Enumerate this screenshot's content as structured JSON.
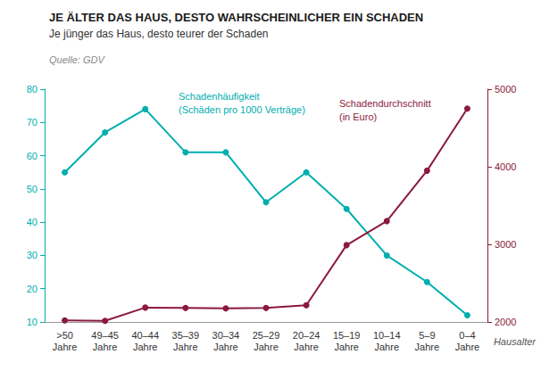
{
  "chart_data": {
    "type": "line",
    "title": "JE ÄLTER DAS HAUS, DESTO WAHRSCHEINLICHER EIN SCHADEN",
    "subtitle": "Je jünger das Haus, desto teurer der Schaden",
    "source": "Quelle: GDV",
    "xlabel": "Hausalter",
    "categories": [
      ">50\nJahre",
      "49–45\nJahre",
      "40–44\nJahre",
      "35–39\nJahre",
      "30–34\nJahre",
      "25–29\nJahre",
      "20–24\nJahre",
      "15–19\nJahre",
      "10–14\nJahre",
      "5–9\nJahre",
      "0–4\nJahre"
    ],
    "series": [
      {
        "name": "Schadenhäufigkeit\n(Schäden pro 1000 Verträge)",
        "color": "#00AEAE",
        "marker": "circle",
        "values": [
          55,
          67,
          74,
          61,
          61,
          46,
          55,
          44,
          30,
          22,
          12
        ]
      },
      {
        "name": "Schadendurchschnitt\n(in Euro)",
        "color": "#8B1A3C",
        "marker": "circle",
        "axis": "y2",
        "values": [
          2020,
          2015,
          2185,
          2180,
          2175,
          2180,
          2215,
          2990,
          3300,
          3950,
          4750
        ]
      }
    ],
    "ylim": [
      10,
      80
    ],
    "yticks": [
      10,
      20,
      30,
      40,
      50,
      60,
      70,
      80
    ],
    "y2lim": [
      2000,
      5000
    ],
    "y2ticks": [
      2000,
      3000,
      4000,
      5000
    ],
    "grid": false
  }
}
